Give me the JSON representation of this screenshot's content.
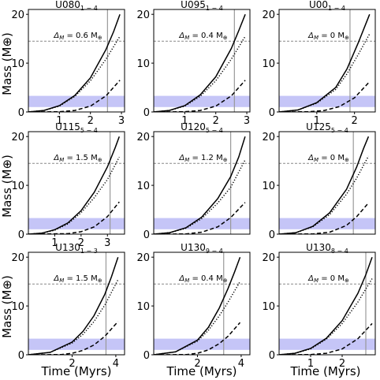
{
  "figure": {
    "ylabel": "Mass (M⊕)",
    "xlabel": "Time (Myrs)"
  },
  "chart_data": [
    {
      "type": "line",
      "title": "U080",
      "title_sub": "1 − 4",
      "delta": "Δ",
      "delta_sub": "M",
      "delta_value": " = 0.6 M",
      "delta_unit": "⊕",
      "xlim": [
        0,
        3.1
      ],
      "xticks": [
        "1",
        "2",
        "3"
      ],
      "xtick_values": [
        1,
        2,
        3
      ],
      "ylim": [
        0,
        21
      ],
      "yticks": [
        "0",
        "10",
        "20"
      ],
      "ytick_values": [
        0,
        10,
        20
      ],
      "vline": 2.55,
      "hline": 14.5,
      "band": [
        1.0,
        3.3
      ],
      "series": [
        {
          "style": "solid",
          "x": [
            0,
            0.5,
            1.0,
            1.5,
            2.0,
            2.5,
            2.75,
            2.95
          ],
          "y": [
            0,
            0.3,
            1.3,
            3.4,
            7.0,
            12.8,
            16.5,
            20.0
          ]
        },
        {
          "style": "dotted",
          "x": [
            0,
            0.5,
            1.0,
            1.5,
            2.0,
            2.5,
            2.95
          ],
          "y": [
            0,
            0.3,
            1.2,
            3.2,
            6.4,
            10.8,
            15.5
          ]
        },
        {
          "style": "dashed",
          "x": [
            0,
            1.0,
            1.5,
            2.0,
            2.5,
            2.95
          ],
          "y": [
            0,
            0.05,
            0.3,
            1.2,
            3.3,
            6.5
          ]
        }
      ]
    },
    {
      "type": "line",
      "title": "U095",
      "title_sub": "1 − 4",
      "delta": "Δ",
      "delta_sub": "M",
      "delta_value": " = 0.4 M",
      "delta_unit": "⊕",
      "xlim": [
        0,
        3.1
      ],
      "xticks": [
        "1",
        "2",
        "3"
      ],
      "xtick_values": [
        1,
        2,
        3
      ],
      "ylim": [
        0,
        21
      ],
      "yticks": [
        "0",
        "10",
        "20"
      ],
      "ytick_values": [
        0,
        10,
        20
      ],
      "vline": 2.6,
      "hline": 14.5,
      "band": [
        1.0,
        3.3
      ],
      "series": [
        {
          "style": "solid",
          "x": [
            0,
            0.5,
            1.0,
            1.5,
            2.0,
            2.5,
            2.75,
            2.95
          ],
          "y": [
            0,
            0.3,
            1.3,
            3.5,
            7.2,
            13.0,
            16.8,
            20.0
          ]
        },
        {
          "style": "dotted",
          "x": [
            0,
            0.5,
            1.0,
            1.5,
            2.0,
            2.5,
            2.95
          ],
          "y": [
            0,
            0.3,
            1.2,
            3.2,
            6.4,
            10.8,
            15.5
          ]
        },
        {
          "style": "dashed",
          "x": [
            0,
            1.0,
            1.5,
            2.0,
            2.5,
            2.95
          ],
          "y": [
            0,
            0.05,
            0.3,
            1.2,
            3.3,
            6.5
          ]
        }
      ]
    },
    {
      "type": "line",
      "title": "U00",
      "title_sub": "1 − 4",
      "delta": "Δ",
      "delta_sub": "M",
      "delta_value": " = 0 M",
      "delta_unit": "⊕",
      "xlim": [
        0,
        2.55
      ],
      "xticks": [
        "1",
        "2"
      ],
      "xtick_values": [
        1,
        2
      ],
      "ylim": [
        0,
        21
      ],
      "yticks": [
        "0",
        "10",
        "20"
      ],
      "ytick_values": [
        0,
        10,
        20
      ],
      "vline": 1.88,
      "hline": 14.5,
      "band": [
        1.0,
        3.3
      ],
      "series": [
        {
          "style": "solid",
          "x": [
            0,
            0.5,
            1.0,
            1.5,
            1.8,
            2.1,
            2.4
          ],
          "y": [
            0,
            0.4,
            1.9,
            5.0,
            8.8,
            14.2,
            20.0
          ]
        },
        {
          "style": "dotted",
          "x": [
            0,
            0.5,
            1.0,
            1.5,
            1.8,
            2.1,
            2.4
          ],
          "y": [
            0,
            0.4,
            1.8,
            4.6,
            7.8,
            11.8,
            16.0
          ]
        },
        {
          "style": "dashed",
          "x": [
            0,
            0.8,
            1.2,
            1.6,
            2.0,
            2.4
          ],
          "y": [
            0,
            0.05,
            0.3,
            1.1,
            2.9,
            6.2
          ]
        }
      ]
    },
    {
      "type": "line",
      "title": "U115",
      "title_sub": "5 − 4",
      "delta": "Δ",
      "delta_sub": "M",
      "delta_value": " = 1.5 M",
      "delta_unit": "⊕",
      "xlim": [
        0,
        3.65
      ],
      "xticks": [
        "1",
        "2",
        "3"
      ],
      "xtick_values": [
        1,
        2,
        3
      ],
      "ylim": [
        0,
        21
      ],
      "yticks": [
        "0",
        "10",
        "20"
      ],
      "ytick_values": [
        0,
        10,
        20
      ],
      "vline": 3.1,
      "hline": 14.5,
      "band": [
        1.0,
        3.3
      ],
      "series": [
        {
          "style": "solid",
          "x": [
            0,
            0.5,
            1.0,
            1.5,
            2.0,
            2.5,
            3.0,
            3.3,
            3.45
          ],
          "y": [
            0,
            0.2,
            0.9,
            2.3,
            4.8,
            8.6,
            13.8,
            17.8,
            20.0
          ]
        },
        {
          "style": "dotted",
          "x": [
            0,
            0.5,
            1.0,
            1.5,
            2.0,
            2.5,
            3.0,
            3.45
          ],
          "y": [
            0,
            0.2,
            0.8,
            2.1,
            4.4,
            7.5,
            11.2,
            15.8
          ]
        },
        {
          "style": "dashed",
          "x": [
            0,
            1.5,
            2.0,
            2.5,
            3.0,
            3.45
          ],
          "y": [
            0,
            0.1,
            0.5,
            1.5,
            3.6,
            6.6
          ]
        }
      ]
    },
    {
      "type": "line",
      "title": "U120",
      "title_sub": "5 − 4",
      "delta": "Δ",
      "delta_sub": "M",
      "delta_value": " = 1.2 M",
      "delta_unit": "⊕",
      "xlim": [
        0,
        3.0
      ],
      "xticks": [],
      "xtick_values": [],
      "ylim": [
        0,
        21
      ],
      "yticks": [
        "0",
        "10",
        "20"
      ],
      "ytick_values": [
        0,
        10,
        20
      ],
      "vline": 2.4,
      "hline": 14.5,
      "band": [
        1.0,
        3.3
      ],
      "series": [
        {
          "style": "solid",
          "x": [
            0,
            0.5,
            1.0,
            1.5,
            2.0,
            2.4,
            2.65,
            2.85
          ],
          "y": [
            0,
            0.3,
            1.3,
            3.5,
            7.3,
            11.8,
            15.8,
            20.0
          ]
        },
        {
          "style": "dotted",
          "x": [
            0,
            0.5,
            1.0,
            1.5,
            2.0,
            2.4,
            2.85
          ],
          "y": [
            0,
            0.3,
            1.2,
            3.2,
            6.4,
            9.6,
            15.2
          ]
        },
        {
          "style": "dashed",
          "x": [
            0,
            1.0,
            1.5,
            2.0,
            2.4,
            2.85
          ],
          "y": [
            0,
            0.05,
            0.4,
            1.5,
            3.4,
            6.5
          ]
        }
      ]
    },
    {
      "type": "line",
      "title": "U125",
      "title_sub": "5 − 4",
      "delta": "Δ",
      "delta_sub": "M",
      "delta_value": " = 0 M",
      "delta_unit": "⊕",
      "xlim": [
        0,
        2.85
      ],
      "xticks": [],
      "xtick_values": [],
      "ylim": [
        0,
        21
      ],
      "yticks": [
        "0",
        "10",
        "20"
      ],
      "ytick_values": [
        0,
        10,
        20
      ],
      "vline": 2.2,
      "hline": 14.5,
      "band": [
        1.0,
        3.3
      ],
      "series": [
        {
          "style": "solid",
          "x": [
            0,
            0.5,
            1.0,
            1.5,
            2.0,
            2.3,
            2.5,
            2.65
          ],
          "y": [
            0,
            0.3,
            1.6,
            4.4,
            9.2,
            13.8,
            17.5,
            20.0
          ]
        },
        {
          "style": "dotted",
          "x": [
            0,
            0.5,
            1.0,
            1.5,
            2.0,
            2.3,
            2.65
          ],
          "y": [
            0,
            0.3,
            1.5,
            4.0,
            8.2,
            11.5,
            16.0
          ]
        },
        {
          "style": "dashed",
          "x": [
            0,
            1.0,
            1.5,
            2.0,
            2.3,
            2.65
          ],
          "y": [
            0,
            0.05,
            0.4,
            1.8,
            3.6,
            6.4
          ]
        }
      ]
    },
    {
      "type": "line",
      "title": "U130",
      "title_sub": "1 − 3",
      "delta": "Δ",
      "delta_sub": "M",
      "delta_value": " = 1.5 M",
      "delta_unit": "⊕",
      "xlim": [
        0,
        4.4
      ],
      "xticks": [
        "2",
        "4"
      ],
      "xtick_values": [
        2,
        4
      ],
      "ylim": [
        0,
        21
      ],
      "yticks": [
        "0",
        "10",
        "20"
      ],
      "ytick_values": [
        0,
        10,
        20
      ],
      "vline": 3.55,
      "hline": 14.5,
      "band": [
        1.0,
        3.3
      ],
      "series": [
        {
          "style": "solid",
          "x": [
            0,
            1.0,
            2.0,
            2.5,
            3.0,
            3.5,
            3.8,
            4.1
          ],
          "y": [
            0,
            0.5,
            2.6,
            4.8,
            8.0,
            12.4,
            16.0,
            20.0
          ]
        },
        {
          "style": "dotted",
          "x": [
            0,
            1.0,
            2.0,
            2.5,
            3.0,
            3.5,
            4.1
          ],
          "y": [
            0,
            0.5,
            2.4,
            4.2,
            6.8,
            10.2,
            15.4
          ]
        },
        {
          "style": "dashed",
          "x": [
            0,
            1.5,
            2.0,
            2.5,
            3.0,
            3.5,
            4.1
          ],
          "y": [
            0,
            0.05,
            0.3,
            0.9,
            2.0,
            3.8,
            6.8
          ]
        }
      ]
    },
    {
      "type": "line",
      "title": "U130",
      "title_sub": "9 − 4",
      "delta": "Δ",
      "delta_sub": "M",
      "delta_value": " = 0.4 M",
      "delta_unit": "⊕",
      "xlim": [
        0,
        4.4
      ],
      "xticks": [
        "2",
        "4"
      ],
      "xtick_values": [
        2,
        4
      ],
      "ylim": [
        0,
        21
      ],
      "yticks": [
        "0",
        "10",
        "20"
      ],
      "ytick_values": [
        0,
        10,
        20
      ],
      "vline": 3.2,
      "hline": 14.5,
      "band": [
        1.0,
        3.3
      ],
      "series": [
        {
          "style": "solid",
          "x": [
            0,
            1.0,
            2.0,
            2.5,
            3.0,
            3.4,
            3.7,
            3.95
          ],
          "y": [
            0,
            0.6,
            3.0,
            5.6,
            9.6,
            13.6,
            17.0,
            20.0
          ]
        },
        {
          "style": "dotted",
          "x": [
            0,
            1.0,
            2.0,
            2.5,
            3.0,
            3.4,
            3.95
          ],
          "y": [
            0,
            0.6,
            2.8,
            5.0,
            8.0,
            10.8,
            15.0
          ]
        },
        {
          "style": "dashed",
          "x": [
            0,
            1.5,
            2.0,
            2.5,
            3.0,
            3.4,
            3.95
          ],
          "y": [
            0,
            0.05,
            0.3,
            1.0,
            2.3,
            3.8,
            6.6
          ]
        }
      ]
    },
    {
      "type": "line",
      "title": "U130",
      "title_sub": "8 − 4",
      "delta": "Δ",
      "delta_sub": "M",
      "delta_value": " = 0 M",
      "delta_unit": "⊕",
      "xlim": [
        0,
        3.05
      ],
      "xticks": [
        "1",
        "2"
      ],
      "xtick_values": [
        1,
        2
      ],
      "ylim": [
        0,
        21
      ],
      "yticks": [
        "0",
        "10",
        "20"
      ],
      "ytick_values": [
        0,
        10,
        20
      ],
      "vline": 2.75,
      "hline": 14.5,
      "band": [
        1.0,
        3.3
      ],
      "series": [
        {
          "style": "solid",
          "x": [
            0,
            0.5,
            1.0,
            1.5,
            2.0,
            2.5,
            2.75,
            2.95
          ],
          "y": [
            0,
            0.3,
            1.3,
            3.4,
            7.0,
            12.6,
            16.4,
            20.0
          ]
        },
        {
          "style": "dotted",
          "x": [
            0,
            0.5,
            1.0,
            1.5,
            2.0,
            2.5,
            2.95
          ],
          "y": [
            0,
            0.3,
            1.2,
            3.2,
            6.4,
            10.8,
            15.6
          ]
        },
        {
          "style": "dashed",
          "x": [
            0,
            1.0,
            1.5,
            2.0,
            2.5,
            2.95
          ],
          "y": [
            0,
            0.05,
            0.3,
            1.2,
            3.3,
            6.4
          ]
        }
      ]
    }
  ]
}
